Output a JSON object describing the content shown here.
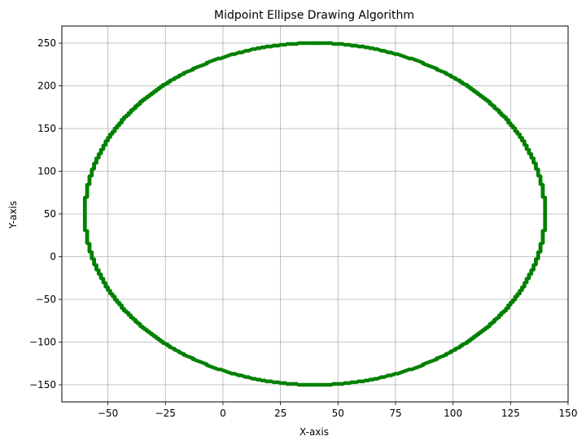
{
  "chart_data": {
    "type": "scatter",
    "title": "Midpoint Ellipse Drawing Algorithm",
    "xlabel": "X-axis",
    "ylabel": "Y-axis",
    "xlim": [
      -70,
      150
    ],
    "ylim": [
      -170,
      270
    ],
    "xticks": [
      -50,
      -25,
      0,
      25,
      50,
      75,
      100,
      125,
      150
    ],
    "yticks": [
      -150,
      -100,
      -50,
      0,
      50,
      100,
      150,
      200,
      250
    ],
    "grid": true,
    "marker_color": "#008000",
    "ellipse": {
      "center": [
        40,
        50
      ],
      "rx": 100,
      "ry": 200
    }
  }
}
